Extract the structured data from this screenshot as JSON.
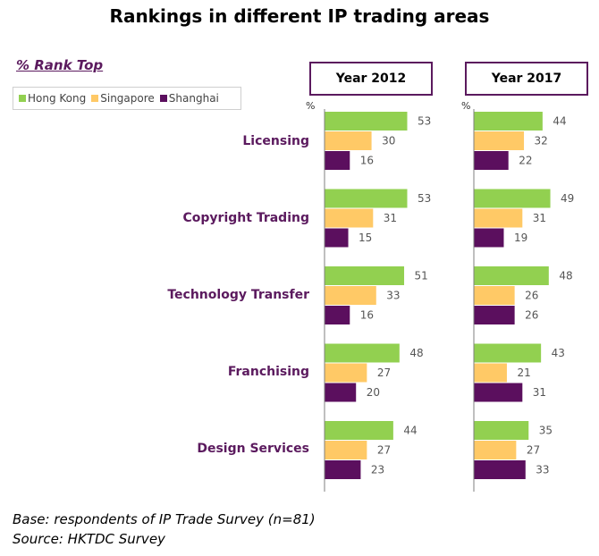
{
  "chart_data": {
    "type": "bar",
    "orientation": "horizontal",
    "title": "Rankings in different IP trading areas",
    "subtitle": "% Rank Top",
    "unit": "%",
    "categories": [
      "Licensing",
      "Copyright Trading",
      "Technology Transfer",
      "Franchising",
      "Design Services"
    ],
    "series_names": [
      "Hong Kong",
      "Singapore",
      "Shanghai"
    ],
    "series_colors": [
      "#92d050",
      "#ffc966",
      "#5b0f5e"
    ],
    "panels": [
      {
        "label": "Year 2012",
        "series": [
          {
            "name": "Hong Kong",
            "values": [
              53,
              53,
              51,
              48,
              44
            ]
          },
          {
            "name": "Singapore",
            "values": [
              30,
              31,
              33,
              27,
              27
            ]
          },
          {
            "name": "Shanghai",
            "values": [
              16,
              15,
              16,
              20,
              23
            ]
          }
        ]
      },
      {
        "label": "Year 2017",
        "series": [
          {
            "name": "Hong Kong",
            "values": [
              44,
              49,
              48,
              43,
              35
            ]
          },
          {
            "name": "Singapore",
            "values": [
              32,
              31,
              26,
              21,
              27
            ]
          },
          {
            "name": "Shanghai",
            "values": [
              22,
              19,
              26,
              31,
              33
            ]
          }
        ]
      }
    ],
    "legend_position": "top-left",
    "grid": false
  },
  "footnotes": {
    "base": "Base: respondents of IP Trade Survey (n=81)",
    "source": "Source: HKTDC Survey"
  }
}
